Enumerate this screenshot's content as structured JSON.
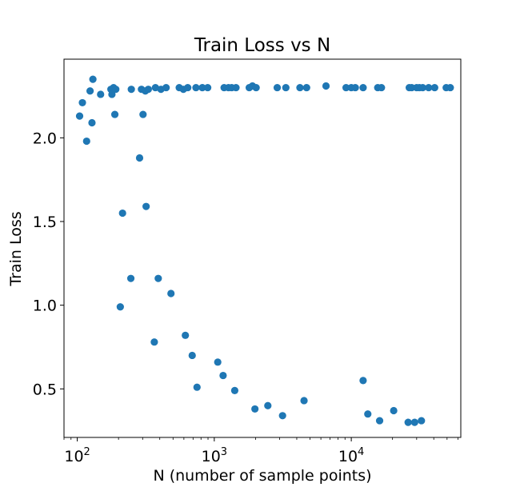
{
  "chart_data": {
    "type": "scatter",
    "title": "Train Loss vs N",
    "xlabel": "N (number of sample points)",
    "ylabel": "Train Loss",
    "xscale": "log",
    "xlim": [
      80,
      63000
    ],
    "ylim": [
      0.21,
      2.47
    ],
    "grid": false,
    "legend": "none",
    "x_major_ticks": [
      {
        "value": 100,
        "base": "10",
        "exp": "2"
      },
      {
        "value": 1000,
        "base": "10",
        "exp": "3"
      },
      {
        "value": 10000,
        "base": "10",
        "exp": "4"
      }
    ],
    "y_ticks": [
      {
        "value": 0.5,
        "label": "0.5"
      },
      {
        "value": 1.0,
        "label": "1.0"
      },
      {
        "value": 1.5,
        "label": "1.5"
      },
      {
        "value": 2.0,
        "label": "2.0"
      }
    ],
    "marker_color": "#1f77b4",
    "series": [
      {
        "points": [
          [
            104,
            2.13
          ],
          [
            109,
            2.21
          ],
          [
            117,
            1.98
          ],
          [
            124,
            2.28
          ],
          [
            128,
            2.09
          ],
          [
            130,
            2.35
          ],
          [
            148,
            2.26
          ],
          [
            176,
            2.29
          ],
          [
            179,
            2.26
          ],
          [
            184,
            2.3
          ],
          [
            188,
            2.14
          ],
          [
            191,
            2.29
          ],
          [
            206,
            0.99
          ],
          [
            214,
            1.55
          ],
          [
            246,
            1.16
          ],
          [
            248,
            2.29
          ],
          [
            285,
            1.88
          ],
          [
            294,
            2.29
          ],
          [
            302,
            2.14
          ],
          [
            314,
            2.28
          ],
          [
            318,
            1.59
          ],
          [
            330,
            2.29
          ],
          [
            365,
            0.78
          ],
          [
            372,
            2.3
          ],
          [
            390,
            1.16
          ],
          [
            408,
            2.29
          ],
          [
            445,
            2.3
          ],
          [
            483,
            1.07
          ],
          [
            555,
            2.3
          ],
          [
            595,
            2.29
          ],
          [
            615,
            0.82
          ],
          [
            640,
            2.3
          ],
          [
            690,
            0.7
          ],
          [
            735,
            2.3
          ],
          [
            748,
            0.51
          ],
          [
            818,
            2.3
          ],
          [
            895,
            2.3
          ],
          [
            1060,
            0.66
          ],
          [
            1160,
            0.58
          ],
          [
            1180,
            2.3
          ],
          [
            1270,
            2.3
          ],
          [
            1340,
            2.3
          ],
          [
            1410,
            0.49
          ],
          [
            1440,
            2.3
          ],
          [
            1800,
            2.3
          ],
          [
            1900,
            2.31
          ],
          [
            1980,
            0.38
          ],
          [
            2020,
            2.3
          ],
          [
            2460,
            0.4
          ],
          [
            2880,
            2.3
          ],
          [
            3150,
            0.34
          ],
          [
            3330,
            2.3
          ],
          [
            4220,
            2.3
          ],
          [
            4520,
            0.43
          ],
          [
            4720,
            2.3
          ],
          [
            6540,
            2.31
          ],
          [
            9160,
            2.3
          ],
          [
            10000,
            2.3
          ],
          [
            10700,
            2.3
          ],
          [
            12200,
            0.55
          ],
          [
            12200,
            2.3
          ],
          [
            13200,
            0.35
          ],
          [
            15600,
            2.3
          ],
          [
            16100,
            0.31
          ],
          [
            16600,
            2.3
          ],
          [
            20400,
            0.37
          ],
          [
            26000,
            0.3
          ],
          [
            26500,
            2.3
          ],
          [
            27600,
            2.3
          ],
          [
            29000,
            0.3
          ],
          [
            30000,
            2.3
          ],
          [
            31400,
            2.3
          ],
          [
            32500,
            0.31
          ],
          [
            33200,
            2.3
          ],
          [
            36700,
            2.3
          ],
          [
            40600,
            2.3
          ],
          [
            49300,
            2.3
          ],
          [
            52800,
            2.3
          ]
        ]
      }
    ]
  }
}
